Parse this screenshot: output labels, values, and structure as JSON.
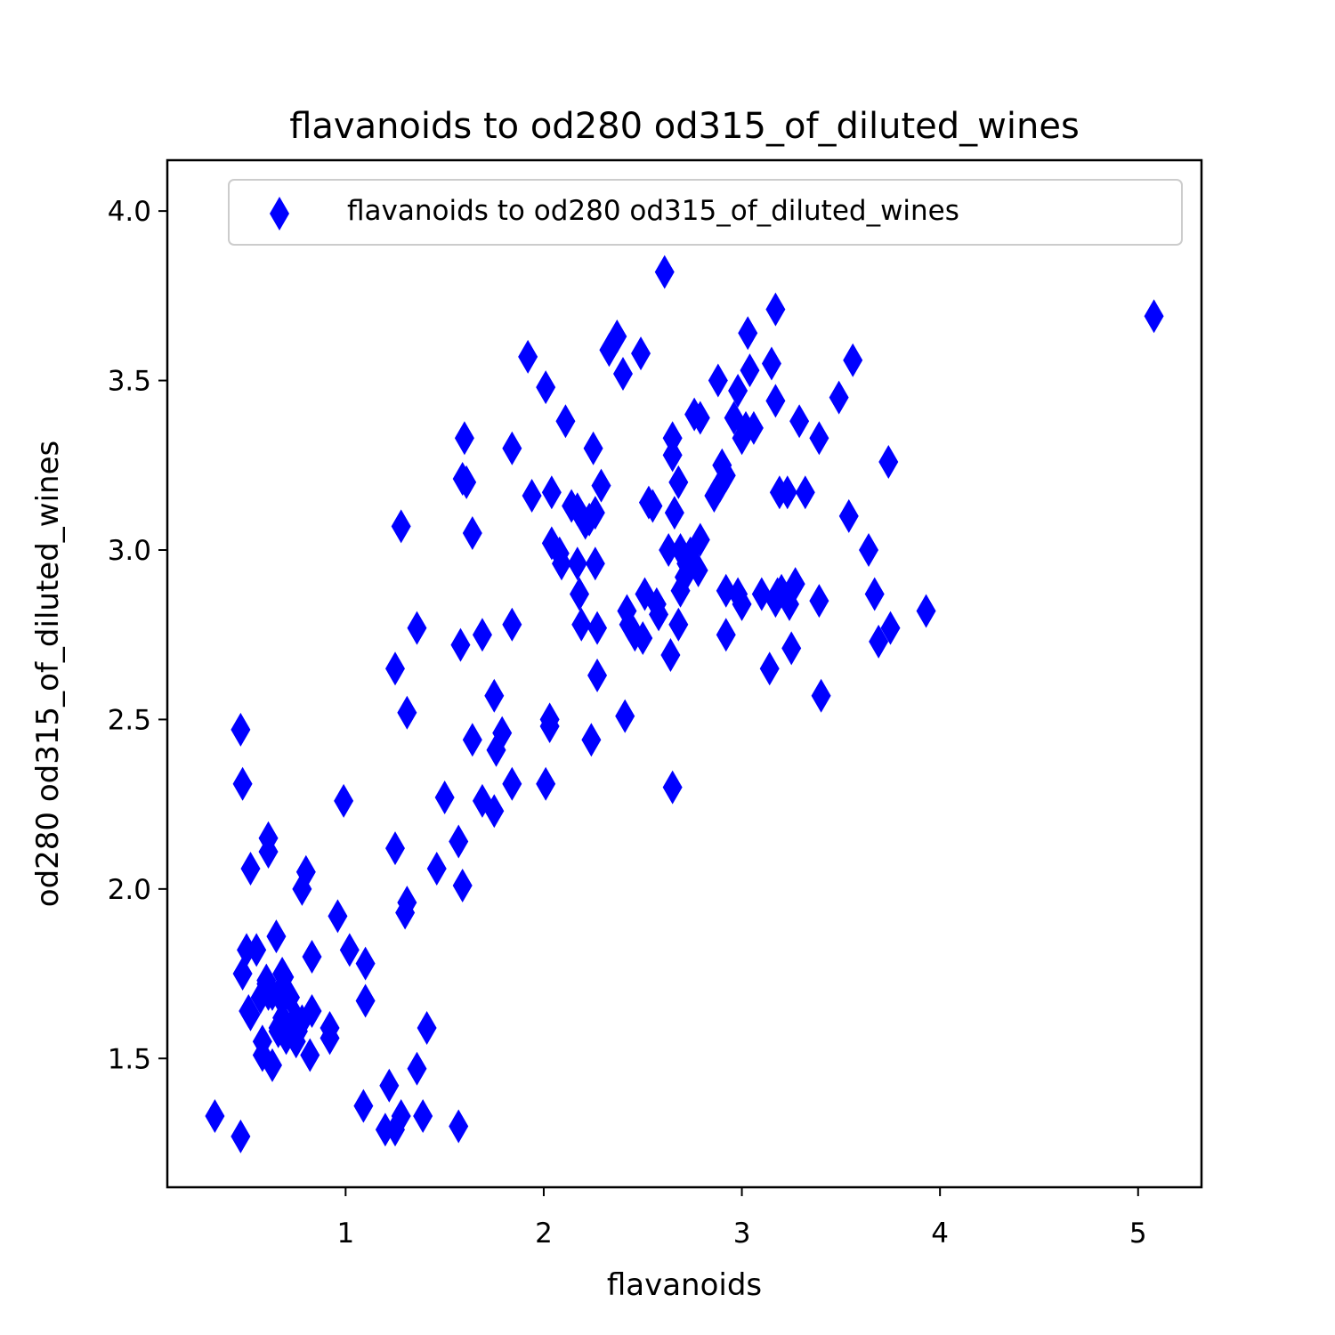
{
  "chart_data": {
    "type": "scatter",
    "title": "flavanoids to od280 od315_of_diluted_wines",
    "xlabel": "flavanoids",
    "ylabel": "od280 od315_of_diluted_wines",
    "xlim": [
      0.1,
      5.32
    ],
    "ylim": [
      1.12,
      4.15
    ],
    "xticks": [
      1,
      2,
      3,
      4,
      5
    ],
    "xtick_labels": [
      "1",
      "2",
      "3",
      "4",
      "5"
    ],
    "yticks": [
      1.5,
      2.0,
      2.5,
      3.0,
      3.5,
      4.0
    ],
    "ytick_labels": [
      "1.5",
      "2.0",
      "2.5",
      "3.0",
      "3.5",
      "4.0"
    ],
    "grid": false,
    "legend_position": "upper right",
    "marker": "thin_diamond",
    "series": [
      {
        "name": "flavanoids to od280 od315_of_diluted_wines",
        "color": "#0000ff",
        "points": [
          [
            0.34,
            1.33
          ],
          [
            0.47,
            1.27
          ],
          [
            0.48,
            1.75
          ],
          [
            0.5,
            1.82
          ],
          [
            0.51,
            1.64
          ],
          [
            0.52,
            1.63
          ],
          [
            0.47,
            2.47
          ],
          [
            0.48,
            2.31
          ],
          [
            0.52,
            2.06
          ],
          [
            0.55,
            1.82
          ],
          [
            0.57,
            1.68
          ],
          [
            0.58,
            1.55
          ],
          [
            0.58,
            1.51
          ],
          [
            0.6,
            1.73
          ],
          [
            0.6,
            1.72
          ],
          [
            0.61,
            1.69
          ],
          [
            0.61,
            2.15
          ],
          [
            0.61,
            2.11
          ],
          [
            0.63,
            1.48
          ],
          [
            0.63,
            1.69
          ],
          [
            0.65,
            1.86
          ],
          [
            0.66,
            1.58
          ],
          [
            0.66,
            1.59
          ],
          [
            0.66,
            1.69
          ],
          [
            0.68,
            1.62
          ],
          [
            0.68,
            1.75
          ],
          [
            0.69,
            1.74
          ],
          [
            0.7,
            1.56
          ],
          [
            0.7,
            1.69
          ],
          [
            0.72,
            1.68
          ],
          [
            0.73,
            1.6
          ],
          [
            0.75,
            1.55
          ],
          [
            0.75,
            1.62
          ],
          [
            0.76,
            1.58
          ],
          [
            0.78,
            1.61
          ],
          [
            0.78,
            2.0
          ],
          [
            0.8,
            2.05
          ],
          [
            0.82,
            1.51
          ],
          [
            0.83,
            1.64
          ],
          [
            0.83,
            1.8
          ],
          [
            0.92,
            1.59
          ],
          [
            0.92,
            1.56
          ],
          [
            0.96,
            1.92
          ],
          [
            0.99,
            2.26
          ],
          [
            1.02,
            1.82
          ],
          [
            1.09,
            1.36
          ],
          [
            1.1,
            1.67
          ],
          [
            1.1,
            1.78
          ],
          [
            1.2,
            1.29
          ],
          [
            1.22,
            1.42
          ],
          [
            1.25,
            2.65
          ],
          [
            1.25,
            2.12
          ],
          [
            1.25,
            1.29
          ],
          [
            1.28,
            1.33
          ],
          [
            1.28,
            3.07
          ],
          [
            1.3,
            1.93
          ],
          [
            1.31,
            1.96
          ],
          [
            1.31,
            2.52
          ],
          [
            1.36,
            2.77
          ],
          [
            1.36,
            1.47
          ],
          [
            1.39,
            1.33
          ],
          [
            1.41,
            1.59
          ],
          [
            1.46,
            2.06
          ],
          [
            1.5,
            2.27
          ],
          [
            1.57,
            1.3
          ],
          [
            1.57,
            2.14
          ],
          [
            1.58,
            2.72
          ],
          [
            1.59,
            2.01
          ],
          [
            1.59,
            3.21
          ],
          [
            1.6,
            3.33
          ],
          [
            1.61,
            3.2
          ],
          [
            1.64,
            3.05
          ],
          [
            1.64,
            2.44
          ],
          [
            1.69,
            2.26
          ],
          [
            1.69,
            2.75
          ],
          [
            1.75,
            2.23
          ],
          [
            1.75,
            2.57
          ],
          [
            1.76,
            2.41
          ],
          [
            1.79,
            2.46
          ],
          [
            1.84,
            2.31
          ],
          [
            1.84,
            2.78
          ],
          [
            1.84,
            3.3
          ],
          [
            1.92,
            3.57
          ],
          [
            1.94,
            3.16
          ],
          [
            2.01,
            2.31
          ],
          [
            2.01,
            3.48
          ],
          [
            2.03,
            2.5
          ],
          [
            2.03,
            2.48
          ],
          [
            2.04,
            3.17
          ],
          [
            2.04,
            3.02
          ],
          [
            2.08,
            2.99
          ],
          [
            2.09,
            2.96
          ],
          [
            2.11,
            3.38
          ],
          [
            2.14,
            3.13
          ],
          [
            2.17,
            3.12
          ],
          [
            2.17,
            2.96
          ],
          [
            2.18,
            2.87
          ],
          [
            2.19,
            2.78
          ],
          [
            2.21,
            3.08
          ],
          [
            2.23,
            3.09
          ],
          [
            2.24,
            2.44
          ],
          [
            2.25,
            3.3
          ],
          [
            2.26,
            2.96
          ],
          [
            2.26,
            3.11
          ],
          [
            2.27,
            2.77
          ],
          [
            2.27,
            2.63
          ],
          [
            2.29,
            3.19
          ],
          [
            2.33,
            3.59
          ],
          [
            2.37,
            3.63
          ],
          [
            2.4,
            3.52
          ],
          [
            2.41,
            2.51
          ],
          [
            2.42,
            2.82
          ],
          [
            2.43,
            2.78
          ],
          [
            2.46,
            2.75
          ],
          [
            2.49,
            3.58
          ],
          [
            2.5,
            2.74
          ],
          [
            2.51,
            2.87
          ],
          [
            2.53,
            3.14
          ],
          [
            2.55,
            3.13
          ],
          [
            2.57,
            2.84
          ],
          [
            2.58,
            2.81
          ],
          [
            2.61,
            3.82
          ],
          [
            2.63,
            3.0
          ],
          [
            2.64,
            2.69
          ],
          [
            2.65,
            2.3
          ],
          [
            2.65,
            3.33
          ],
          [
            2.65,
            3.28
          ],
          [
            2.66,
            3.11
          ],
          [
            2.68,
            3.2
          ],
          [
            2.68,
            2.78
          ],
          [
            2.69,
            2.88
          ],
          [
            2.69,
            3.0
          ],
          [
            2.71,
            2.92
          ],
          [
            2.72,
            2.96
          ],
          [
            2.74,
            2.99
          ],
          [
            2.76,
            3.4
          ],
          [
            2.78,
            2.94
          ],
          [
            2.79,
            3.39
          ],
          [
            2.79,
            3.03
          ],
          [
            2.86,
            3.16
          ],
          [
            2.88,
            3.5
          ],
          [
            2.89,
            3.19
          ],
          [
            2.9,
            3.25
          ],
          [
            2.92,
            3.22
          ],
          [
            2.92,
            2.88
          ],
          [
            2.92,
            2.75
          ],
          [
            2.96,
            3.39
          ],
          [
            2.98,
            3.47
          ],
          [
            2.98,
            2.87
          ],
          [
            3.0,
            3.33
          ],
          [
            3.0,
            2.84
          ],
          [
            3.02,
            3.36
          ],
          [
            3.03,
            3.64
          ],
          [
            3.04,
            3.53
          ],
          [
            3.06,
            3.36
          ],
          [
            3.1,
            2.87
          ],
          [
            3.14,
            2.65
          ],
          [
            3.15,
            3.55
          ],
          [
            3.17,
            3.44
          ],
          [
            3.17,
            3.71
          ],
          [
            3.17,
            2.85
          ],
          [
            3.18,
            2.87
          ],
          [
            3.19,
            3.17
          ],
          [
            3.2,
            2.88
          ],
          [
            3.23,
            3.17
          ],
          [
            3.24,
            2.84
          ],
          [
            3.25,
            2.71
          ],
          [
            3.27,
            2.9
          ],
          [
            3.29,
            3.38
          ],
          [
            3.32,
            3.17
          ],
          [
            3.39,
            3.33
          ],
          [
            3.39,
            2.85
          ],
          [
            3.4,
            2.57
          ],
          [
            3.49,
            3.45
          ],
          [
            3.54,
            3.1
          ],
          [
            3.56,
            3.56
          ],
          [
            3.64,
            3.0
          ],
          [
            3.67,
            2.87
          ],
          [
            3.69,
            2.73
          ],
          [
            3.74,
            3.26
          ],
          [
            3.75,
            2.77
          ],
          [
            3.93,
            2.82
          ],
          [
            5.08,
            3.69
          ]
        ]
      }
    ]
  }
}
